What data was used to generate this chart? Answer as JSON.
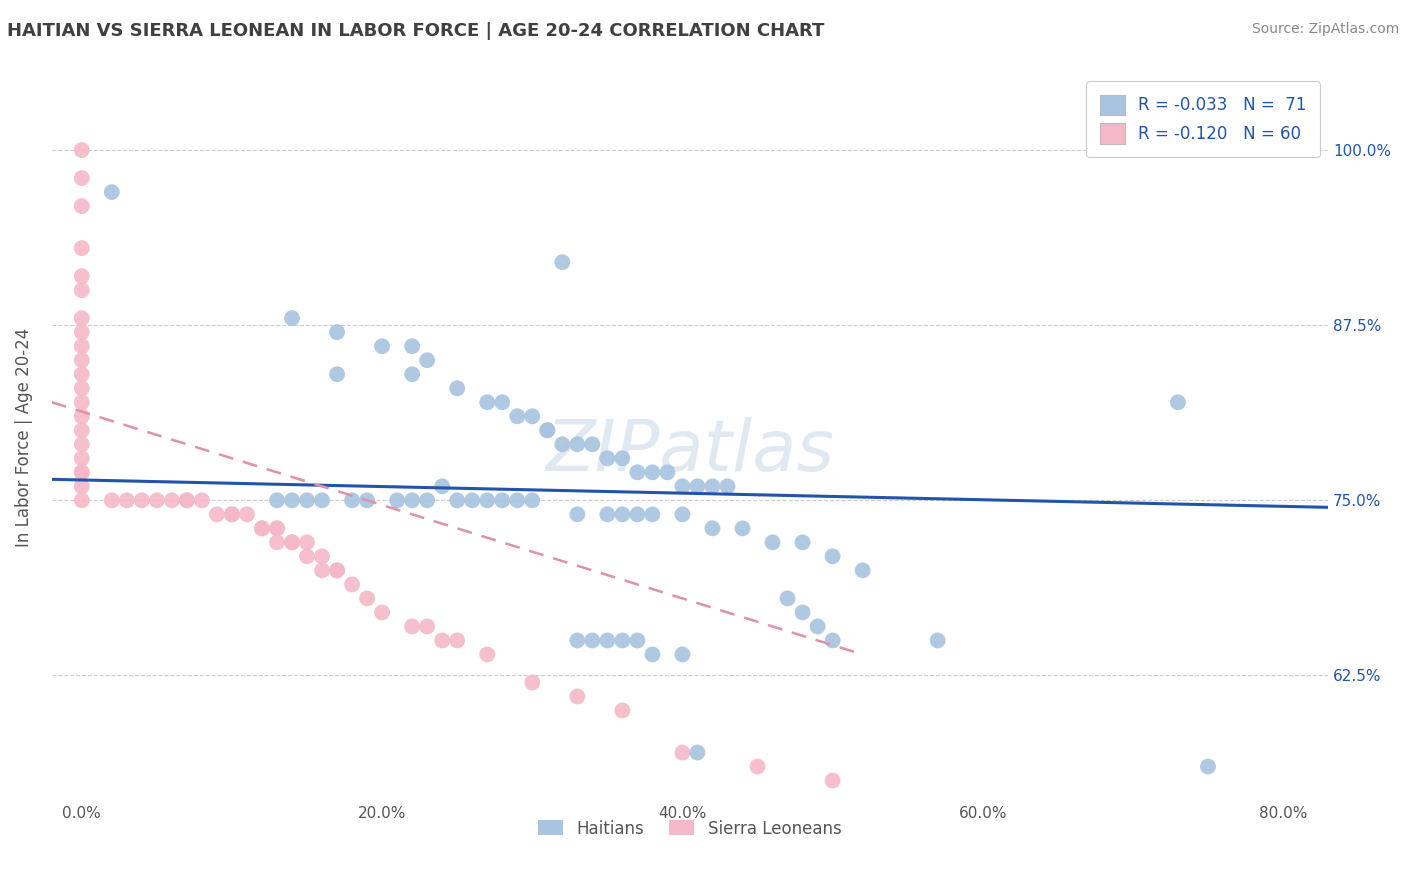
{
  "title": "HAITIAN VS SIERRA LEONEAN IN LABOR FORCE | AGE 20-24 CORRELATION CHART",
  "source": "Source: ZipAtlas.com",
  "ylabel": "In Labor Force | Age 20-24",
  "x_tick_labels": [
    "0.0%",
    "20.0%",
    "40.0%",
    "60.0%",
    "80.0%"
  ],
  "x_tick_values": [
    0.0,
    0.2,
    0.4,
    0.6,
    0.8
  ],
  "y_tick_labels_right": [
    "62.5%",
    "75.0%",
    "87.5%",
    "100.0%"
  ],
  "y_tick_values": [
    0.625,
    0.75,
    0.875,
    1.0
  ],
  "xlim": [
    -0.02,
    0.83
  ],
  "ylim": [
    0.535,
    1.055
  ],
  "blue_color": "#a8c4e0",
  "pink_color": "#f4b8c8",
  "blue_line_color": "#2255aa",
  "pink_line_color": "#e090a8",
  "legend_text_color": "#2255aa",
  "title_color": "#404040",
  "source_color": "#888888",
  "grid_color": "#cccccc",
  "background_color": "#ffffff",
  "blue_scatter_x": [
    0.02,
    0.32,
    0.14,
    0.17,
    0.2,
    0.22,
    0.23,
    0.17,
    0.22,
    0.25,
    0.27,
    0.28,
    0.29,
    0.3,
    0.31,
    0.31,
    0.32,
    0.33,
    0.34,
    0.35,
    0.36,
    0.37,
    0.38,
    0.39,
    0.4,
    0.41,
    0.42,
    0.43,
    0.24,
    0.25,
    0.26,
    0.27,
    0.28,
    0.29,
    0.3,
    0.18,
    0.19,
    0.21,
    0.22,
    0.23,
    0.15,
    0.16,
    0.13,
    0.14,
    0.33,
    0.35,
    0.36,
    0.37,
    0.38,
    0.4,
    0.42,
    0.44,
    0.46,
    0.48,
    0.5,
    0.52,
    0.47,
    0.48,
    0.49,
    0.5,
    0.57,
    0.73,
    0.75,
    0.33,
    0.34,
    0.35,
    0.36,
    0.37,
    0.38,
    0.4,
    0.41
  ],
  "blue_scatter_y": [
    0.97,
    0.92,
    0.88,
    0.87,
    0.86,
    0.86,
    0.85,
    0.84,
    0.84,
    0.83,
    0.82,
    0.82,
    0.81,
    0.81,
    0.8,
    0.8,
    0.79,
    0.79,
    0.79,
    0.78,
    0.78,
    0.77,
    0.77,
    0.77,
    0.76,
    0.76,
    0.76,
    0.76,
    0.76,
    0.75,
    0.75,
    0.75,
    0.75,
    0.75,
    0.75,
    0.75,
    0.75,
    0.75,
    0.75,
    0.75,
    0.75,
    0.75,
    0.75,
    0.75,
    0.74,
    0.74,
    0.74,
    0.74,
    0.74,
    0.74,
    0.73,
    0.73,
    0.72,
    0.72,
    0.71,
    0.7,
    0.68,
    0.67,
    0.66,
    0.65,
    0.65,
    0.82,
    0.56,
    0.65,
    0.65,
    0.65,
    0.65,
    0.65,
    0.64,
    0.64,
    0.57
  ],
  "pink_scatter_x": [
    0.0,
    0.0,
    0.0,
    0.0,
    0.0,
    0.0,
    0.0,
    0.0,
    0.0,
    0.0,
    0.0,
    0.0,
    0.0,
    0.0,
    0.0,
    0.0,
    0.0,
    0.0,
    0.0,
    0.0,
    0.0,
    0.02,
    0.03,
    0.04,
    0.05,
    0.06,
    0.07,
    0.07,
    0.08,
    0.09,
    0.1,
    0.1,
    0.11,
    0.12,
    0.12,
    0.13,
    0.13,
    0.13,
    0.14,
    0.14,
    0.15,
    0.15,
    0.16,
    0.16,
    0.17,
    0.17,
    0.18,
    0.19,
    0.2,
    0.22,
    0.23,
    0.24,
    0.25,
    0.27,
    0.3,
    0.33,
    0.36,
    0.4,
    0.45,
    0.5
  ],
  "pink_scatter_y": [
    1.0,
    0.98,
    0.96,
    0.93,
    0.91,
    0.9,
    0.88,
    0.87,
    0.86,
    0.85,
    0.84,
    0.83,
    0.82,
    0.81,
    0.8,
    0.79,
    0.78,
    0.77,
    0.77,
    0.76,
    0.75,
    0.75,
    0.75,
    0.75,
    0.75,
    0.75,
    0.75,
    0.75,
    0.75,
    0.74,
    0.74,
    0.74,
    0.74,
    0.73,
    0.73,
    0.73,
    0.73,
    0.72,
    0.72,
    0.72,
    0.72,
    0.71,
    0.71,
    0.7,
    0.7,
    0.7,
    0.69,
    0.68,
    0.67,
    0.66,
    0.66,
    0.65,
    0.65,
    0.64,
    0.62,
    0.61,
    0.6,
    0.57,
    0.56,
    0.55
  ],
  "blue_trendline_x": [
    -0.02,
    0.83
  ],
  "blue_trendline_y": [
    0.765,
    0.745
  ],
  "pink_trendline_x": [
    -0.02,
    0.52
  ],
  "pink_trendline_y": [
    0.82,
    0.64
  ]
}
